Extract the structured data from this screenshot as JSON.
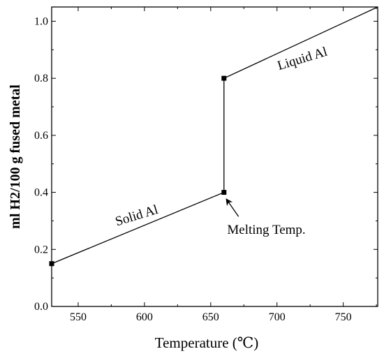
{
  "chart_data": {
    "type": "line",
    "title": "",
    "xlabel": "Temperature (℃)",
    "ylabel": "ml H2/100 g fused metal",
    "xlim": [
      530,
      776
    ],
    "ylim": [
      0.0,
      1.05
    ],
    "grid": false,
    "x_ticks": [
      550,
      600,
      650,
      700,
      750
    ],
    "y_ticks": [
      0.0,
      0.2,
      0.4,
      0.6,
      0.8,
      1.0
    ],
    "x_tick_labels": [
      "550",
      "600",
      "650",
      "700",
      "750"
    ],
    "y_tick_labels": [
      "0.0",
      "0.2",
      "0.4",
      "0.6",
      "0.8",
      "1.0"
    ],
    "series": [
      {
        "x": [
          530,
          660,
          660,
          776
        ],
        "y": [
          0.15,
          0.4,
          0.8,
          1.05
        ]
      }
    ],
    "markers": [
      {
        "x": 530,
        "y": 0.15
      },
      {
        "x": 660,
        "y": 0.4
      },
      {
        "x": 660,
        "y": 0.8
      }
    ],
    "annotations": [
      {
        "text": "Solid Al",
        "x": 595,
        "y": 0.305,
        "rotate": -17
      },
      {
        "text": "Liquid Al",
        "x": 720,
        "y": 0.855,
        "rotate": -17
      },
      {
        "text": "Melting Temp.",
        "x": 692,
        "y": 0.255,
        "rotate": 0
      },
      {
        "type": "arrow",
        "from": [
          671,
          0.315
        ],
        "to": [
          662,
          0.375
        ]
      }
    ]
  }
}
